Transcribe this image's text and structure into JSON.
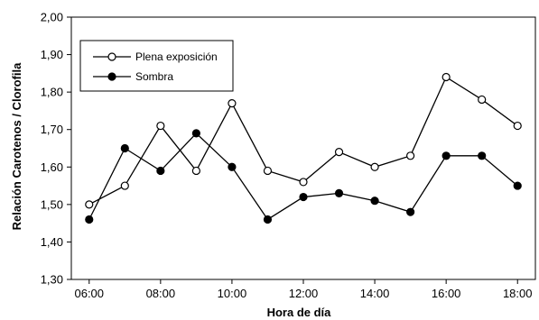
{
  "chart_data": {
    "type": "line",
    "title": "",
    "xlabel": "Hora de día",
    "ylabel": "Relación Carotenos / Clorofila",
    "x_ticks": [
      "06:00",
      "08:00",
      "10:00",
      "12:00",
      "14:00",
      "16:00",
      "18:00"
    ],
    "xlim": [
      "05:30",
      "18:30"
    ],
    "y_ticks": [
      "1,30",
      "1,40",
      "1,50",
      "1,60",
      "1,70",
      "1,80",
      "1,90",
      "2,00"
    ],
    "ylim": [
      1.3,
      2.0
    ],
    "grid": false,
    "legend_position": "top-left",
    "x": [
      "06:00",
      "07:00",
      "08:00",
      "09:00",
      "10:00",
      "11:00",
      "12:00",
      "13:00",
      "14:00",
      "15:00",
      "16:00",
      "17:00",
      "18:00"
    ],
    "series": [
      {
        "name": "Plena exposición",
        "marker": "open-circle",
        "color": "#000000",
        "values": [
          1.5,
          1.55,
          1.71,
          1.59,
          1.77,
          1.59,
          1.56,
          1.64,
          1.6,
          1.63,
          1.84,
          1.78,
          1.71
        ]
      },
      {
        "name": "Sombra",
        "marker": "filled-circle",
        "color": "#000000",
        "values": [
          1.46,
          1.65,
          1.59,
          1.69,
          1.6,
          1.46,
          1.52,
          1.53,
          1.51,
          1.48,
          1.63,
          1.63,
          1.55
        ]
      }
    ]
  }
}
